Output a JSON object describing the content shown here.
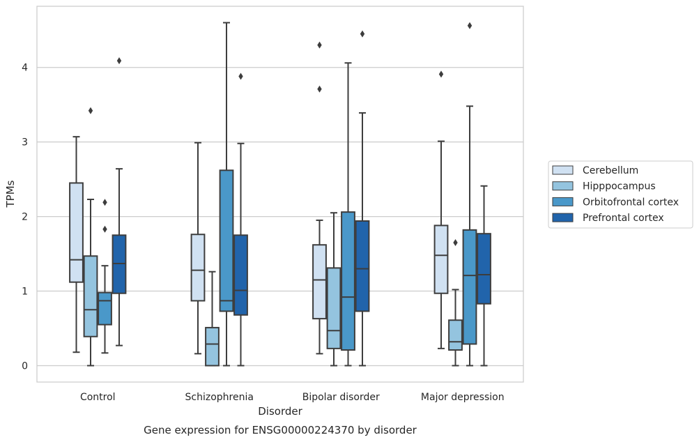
{
  "chart_data": {
    "type": "boxplot",
    "caption": "Gene expression for ENSG00000224370 by disorder",
    "xlabel": "Disorder",
    "ylabel": "TPMs",
    "ylim": [
      -0.22,
      4.82
    ],
    "yticks": [
      0,
      1,
      2,
      3,
      4
    ],
    "grid": "horizontal",
    "legend_placement": "right",
    "categories": [
      "Control",
      "Schizophrenia",
      "Bipolar disorder",
      "Major depression"
    ],
    "series": [
      {
        "name": "Cerebellum",
        "color": "#d0e1f2",
        "boxes": [
          {
            "whislo": 0.18,
            "q1": 1.12,
            "med": 1.42,
            "q3": 2.45,
            "whishi": 3.07,
            "fliers": []
          },
          {
            "whislo": 0.16,
            "q1": 0.87,
            "med": 1.28,
            "q3": 1.76,
            "whishi": 2.99,
            "fliers": []
          },
          {
            "whislo": 0.16,
            "q1": 0.63,
            "med": 1.15,
            "q3": 1.62,
            "whishi": 1.95,
            "fliers": [
              3.71,
              4.3
            ]
          },
          {
            "whislo": 0.23,
            "q1": 0.97,
            "med": 1.48,
            "q3": 1.88,
            "whishi": 3.01,
            "fliers": [
              3.91
            ]
          }
        ]
      },
      {
        "name": "Hipppocampus",
        "color": "#94c4df",
        "boxes": [
          {
            "whislo": 0.0,
            "q1": 0.39,
            "med": 0.75,
            "q3": 1.47,
            "whishi": 2.23,
            "fliers": [
              3.42
            ]
          },
          {
            "whislo": 0.0,
            "q1": 0.0,
            "med": 0.29,
            "q3": 0.51,
            "whishi": 1.26,
            "fliers": []
          },
          {
            "whislo": 0.0,
            "q1": 0.23,
            "med": 0.47,
            "q3": 1.31,
            "whishi": 2.05,
            "fliers": []
          },
          {
            "whislo": 0.0,
            "q1": 0.21,
            "med": 0.32,
            "q3": 0.61,
            "whishi": 1.02,
            "fliers": [
              1.65
            ]
          }
        ]
      },
      {
        "name": "Orbitofrontal cortex",
        "color": "#4a98c9",
        "boxes": [
          {
            "whislo": 0.17,
            "q1": 0.55,
            "med": 0.87,
            "q3": 0.98,
            "whishi": 1.34,
            "fliers": [
              1.83,
              2.19
            ]
          },
          {
            "whislo": 0.0,
            "q1": 0.73,
            "med": 0.87,
            "q3": 2.62,
            "whishi": 4.6,
            "fliers": []
          },
          {
            "whislo": 0.0,
            "q1": 0.21,
            "med": 0.92,
            "q3": 2.06,
            "whishi": 4.06,
            "fliers": []
          },
          {
            "whislo": 0.0,
            "q1": 0.29,
            "med": 1.21,
            "q3": 1.82,
            "whishi": 3.48,
            "fliers": [
              4.56
            ]
          }
        ]
      },
      {
        "name": "Prefrontal cortex",
        "color": "#2164ab",
        "boxes": [
          {
            "whislo": 0.27,
            "q1": 0.97,
            "med": 1.37,
            "q3": 1.75,
            "whishi": 2.64,
            "fliers": [
              4.09
            ]
          },
          {
            "whislo": 0.0,
            "q1": 0.68,
            "med": 1.01,
            "q3": 1.75,
            "whishi": 2.98,
            "fliers": [
              3.88
            ]
          },
          {
            "whislo": 0.0,
            "q1": 0.73,
            "med": 1.3,
            "q3": 1.94,
            "whishi": 3.39,
            "fliers": [
              4.45
            ]
          },
          {
            "whislo": 0.0,
            "q1": 0.83,
            "med": 1.22,
            "q3": 1.77,
            "whishi": 2.41,
            "fliers": []
          }
        ]
      }
    ]
  }
}
